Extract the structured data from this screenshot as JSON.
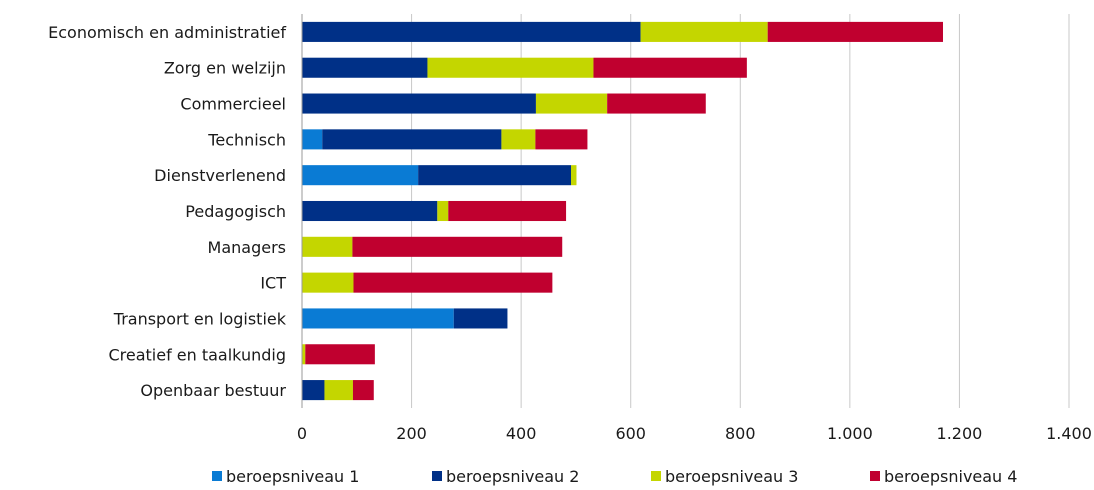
{
  "chart_data": {
    "type": "bar",
    "orientation": "horizontal",
    "stacked": true,
    "categories": [
      "Economisch en administratief",
      "Zorg en welzijn",
      "Commercieel",
      "Technisch",
      "Dienstverlenend",
      "Pedagogisch",
      "Managers",
      "ICT",
      "Transport en logistiek",
      "Creatief en taalkundig",
      "Openbaar bestuur"
    ],
    "series": [
      {
        "name": "beroepsniveau 1",
        "color": "#0a7bd4",
        "values": [
          0,
          0,
          0,
          37,
          212,
          0,
          0,
          0,
          277,
          0,
          0
        ]
      },
      {
        "name": "beroepsniveau 2",
        "color": "#003087",
        "values": [
          618,
          229,
          427,
          327,
          279,
          247,
          0,
          0,
          98,
          0,
          41
        ]
      },
      {
        "name": "beroepsniveau 3",
        "color": "#c4d600",
        "values": [
          232,
          303,
          130,
          62,
          10,
          20,
          92,
          94,
          0,
          6,
          52
        ]
      },
      {
        "name": "beroepsniveau 4",
        "color": "#c0002f",
        "values": [
          320,
          280,
          180,
          95,
          0,
          215,
          383,
          363,
          0,
          127,
          38
        ]
      }
    ],
    "xlim": [
      0,
      1400
    ],
    "xticks": [
      0,
      200,
      400,
      600,
      800,
      1000,
      1200,
      1400
    ],
    "xtick_labels": [
      "0",
      "200",
      "400",
      "600",
      "800",
      "1.000",
      "1.200",
      "1.400"
    ],
    "grid": true,
    "legend_position": "bottom",
    "title": "",
    "xlabel": "",
    "ylabel": ""
  }
}
